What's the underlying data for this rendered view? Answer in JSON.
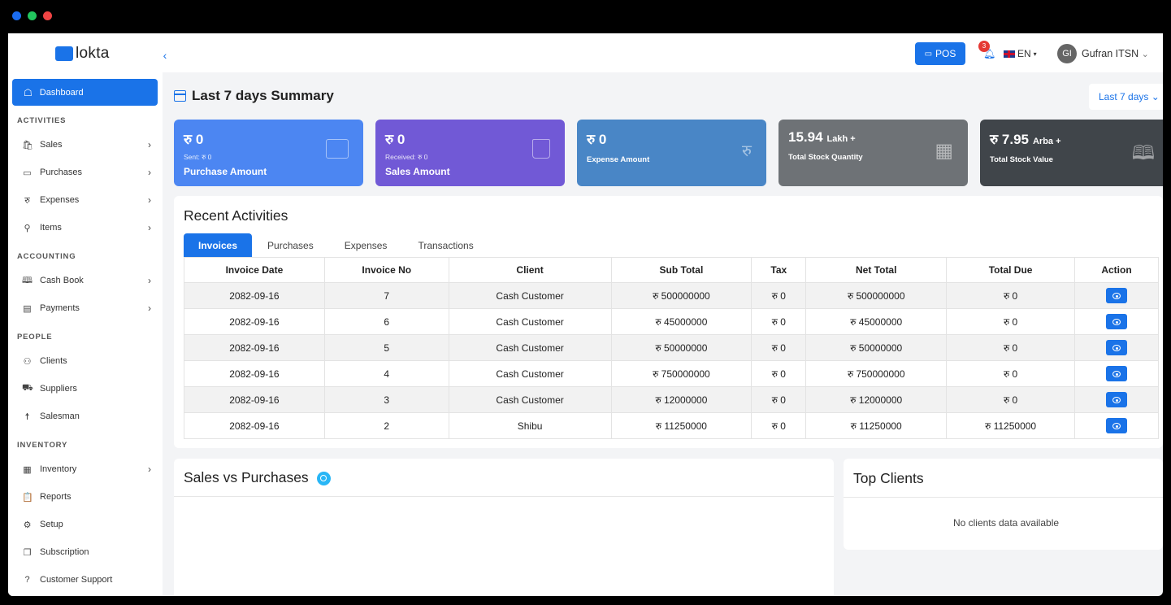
{
  "window": {
    "dots": [
      "#1a6cf0",
      "#22c55e",
      "#ef4444"
    ]
  },
  "logo": {
    "text": "lokta"
  },
  "sidebar": {
    "active": {
      "label": "Dashboard",
      "icon": "dashboard-icon"
    },
    "sections": [
      {
        "title": "ACTIVITIES",
        "items": [
          {
            "label": "Sales",
            "icon": "bag-icon",
            "glyph": "🛍",
            "chevron": true
          },
          {
            "label": "Purchases",
            "icon": "card-icon",
            "glyph": "▭",
            "chevron": true
          },
          {
            "label": "Expenses",
            "icon": "rupee-icon",
            "glyph": "रु",
            "chevron": true
          },
          {
            "label": "Items",
            "icon": "items-icon",
            "glyph": "⚲",
            "chevron": true
          }
        ]
      },
      {
        "title": "ACCOUNTING",
        "items": [
          {
            "label": "Cash Book",
            "icon": "book-icon",
            "glyph": "🕮",
            "chevron": true
          },
          {
            "label": "Payments",
            "icon": "payment-icon",
            "glyph": "▤",
            "chevron": true
          }
        ]
      },
      {
        "title": "PEOPLE",
        "items": [
          {
            "label": "Clients",
            "icon": "clients-icon",
            "glyph": "⚇",
            "chevron": false
          },
          {
            "label": "Suppliers",
            "icon": "suppliers-icon",
            "glyph": "⛟",
            "chevron": false
          },
          {
            "label": "Salesman",
            "icon": "salesman-icon",
            "glyph": "☨",
            "chevron": false
          }
        ]
      },
      {
        "title": "INVENTORY",
        "items": [
          {
            "label": "Inventory",
            "icon": "inventory-icon",
            "glyph": "▦",
            "chevron": true
          },
          {
            "label": "Reports",
            "icon": "clipboard-icon",
            "glyph": "📋",
            "chevron": false
          },
          {
            "label": "Setup",
            "icon": "gear-icon",
            "glyph": "⚙",
            "chevron": false
          },
          {
            "label": "Subscription",
            "icon": "subscription-icon",
            "glyph": "❐",
            "chevron": false
          },
          {
            "label": "Customer Support",
            "icon": "help-icon",
            "glyph": "?",
            "chevron": false
          }
        ]
      }
    ]
  },
  "header": {
    "pos_label": "POS",
    "notif_count": "3",
    "lang": "EN",
    "user_initials": "GI",
    "user_name": "Gufran ITSN"
  },
  "summary": {
    "title": "Last 7 days Summary",
    "period": "Last 7 days",
    "cards": [
      {
        "amount": "रु 0",
        "unit": "",
        "sub": "Sent: रु 0",
        "label": "Purchase Amount",
        "color": "#4c86f2",
        "icon": "wallet-icon",
        "small_label": false
      },
      {
        "amount": "रु 0",
        "unit": "",
        "sub": "Received: रु 0",
        "label": "Sales Amount",
        "color": "#7159d6",
        "icon": "shopping-bag-icon",
        "small_label": false
      },
      {
        "amount": "रु 0",
        "unit": "",
        "sub": "",
        "label": "Expense Amount",
        "color": "#4986c6",
        "icon": "rupee-icon",
        "small_label": true
      },
      {
        "amount": "15.94",
        "unit": "Lakh +",
        "sub": "",
        "label": "Total Stock Quantity",
        "color": "#6e7276",
        "icon": "grid-icon",
        "small_label": true
      },
      {
        "amount": "रु 7.95",
        "unit": "Arba +",
        "sub": "",
        "label": "Total Stock Value",
        "color": "#40454a",
        "icon": "book-icon",
        "small_label": true
      }
    ]
  },
  "recent": {
    "title": "Recent Activities",
    "tabs": [
      "Invoices",
      "Purchases",
      "Expenses",
      "Transactions"
    ],
    "columns": [
      "Invoice Date",
      "Invoice No",
      "Client",
      "Sub Total",
      "Tax",
      "Net Total",
      "Total Due",
      "Action"
    ],
    "rows": [
      [
        "2082-09-16",
        "7",
        "Cash Customer",
        "रु 500000000",
        "रु 0",
        "रु 500000000",
        "रु 0"
      ],
      [
        "2082-09-16",
        "6",
        "Cash Customer",
        "रु 45000000",
        "रु 0",
        "रु 45000000",
        "रु 0"
      ],
      [
        "2082-09-16",
        "5",
        "Cash Customer",
        "रु 50000000",
        "रु 0",
        "रु 50000000",
        "रु 0"
      ],
      [
        "2082-09-16",
        "4",
        "Cash Customer",
        "रु 750000000",
        "रु 0",
        "रु 750000000",
        "रु 0"
      ],
      [
        "2082-09-16",
        "3",
        "Cash Customer",
        "रु 12000000",
        "रु 0",
        "रु 12000000",
        "रु 0"
      ],
      [
        "2082-09-16",
        "2",
        "Shibu",
        "रु 11250000",
        "रु 0",
        "रु 11250000",
        "रु 11250000"
      ]
    ]
  },
  "sales_vs_purchases": {
    "title": "Sales vs Purchases"
  },
  "top_clients": {
    "title": "Top Clients",
    "empty": "No clients data available"
  }
}
